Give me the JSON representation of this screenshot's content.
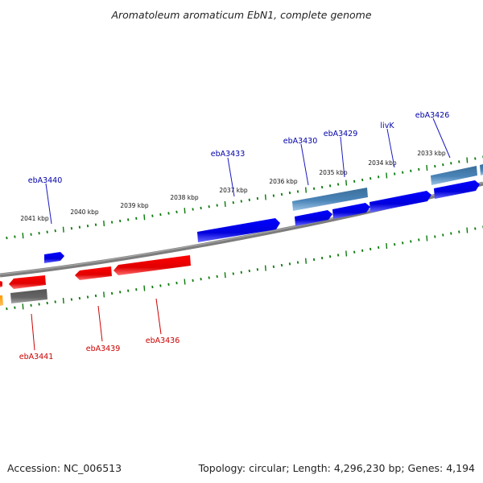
{
  "title": "Aromatoleum aromaticum EbN1, complete genome",
  "footer": {
    "accession": "Accession: NC_006513",
    "topology": "Topology: circular; Length: 4,296,230 bp; Genes: 4,194"
  },
  "kbp_ticks": [
    "2041 kbp",
    "2040 kbp",
    "2039 kbp",
    "2038 kbp",
    "2037 kbp",
    "2036 kbp",
    "2035 kbp",
    "2034 kbp",
    "2033 kbp"
  ],
  "colors": {
    "forward_gene": "#0000ee",
    "forward_label": "#0000aa",
    "operon": "#4682b4",
    "reverse_gene": "#ee0000",
    "reverse_label": "#cc0000",
    "pseudo_gene": "#666666",
    "other_gene": "#ff9900",
    "backbone": "#7a7a7a",
    "ticks": "#0a7a0a"
  },
  "genes": {
    "forward": [
      "ebA3440",
      "ebA3433",
      "ebA3430",
      "ebA3429",
      "livK",
      "ebA3426"
    ],
    "reverse": [
      "ebA3441",
      "ebA3439",
      "ebA3436"
    ]
  }
}
